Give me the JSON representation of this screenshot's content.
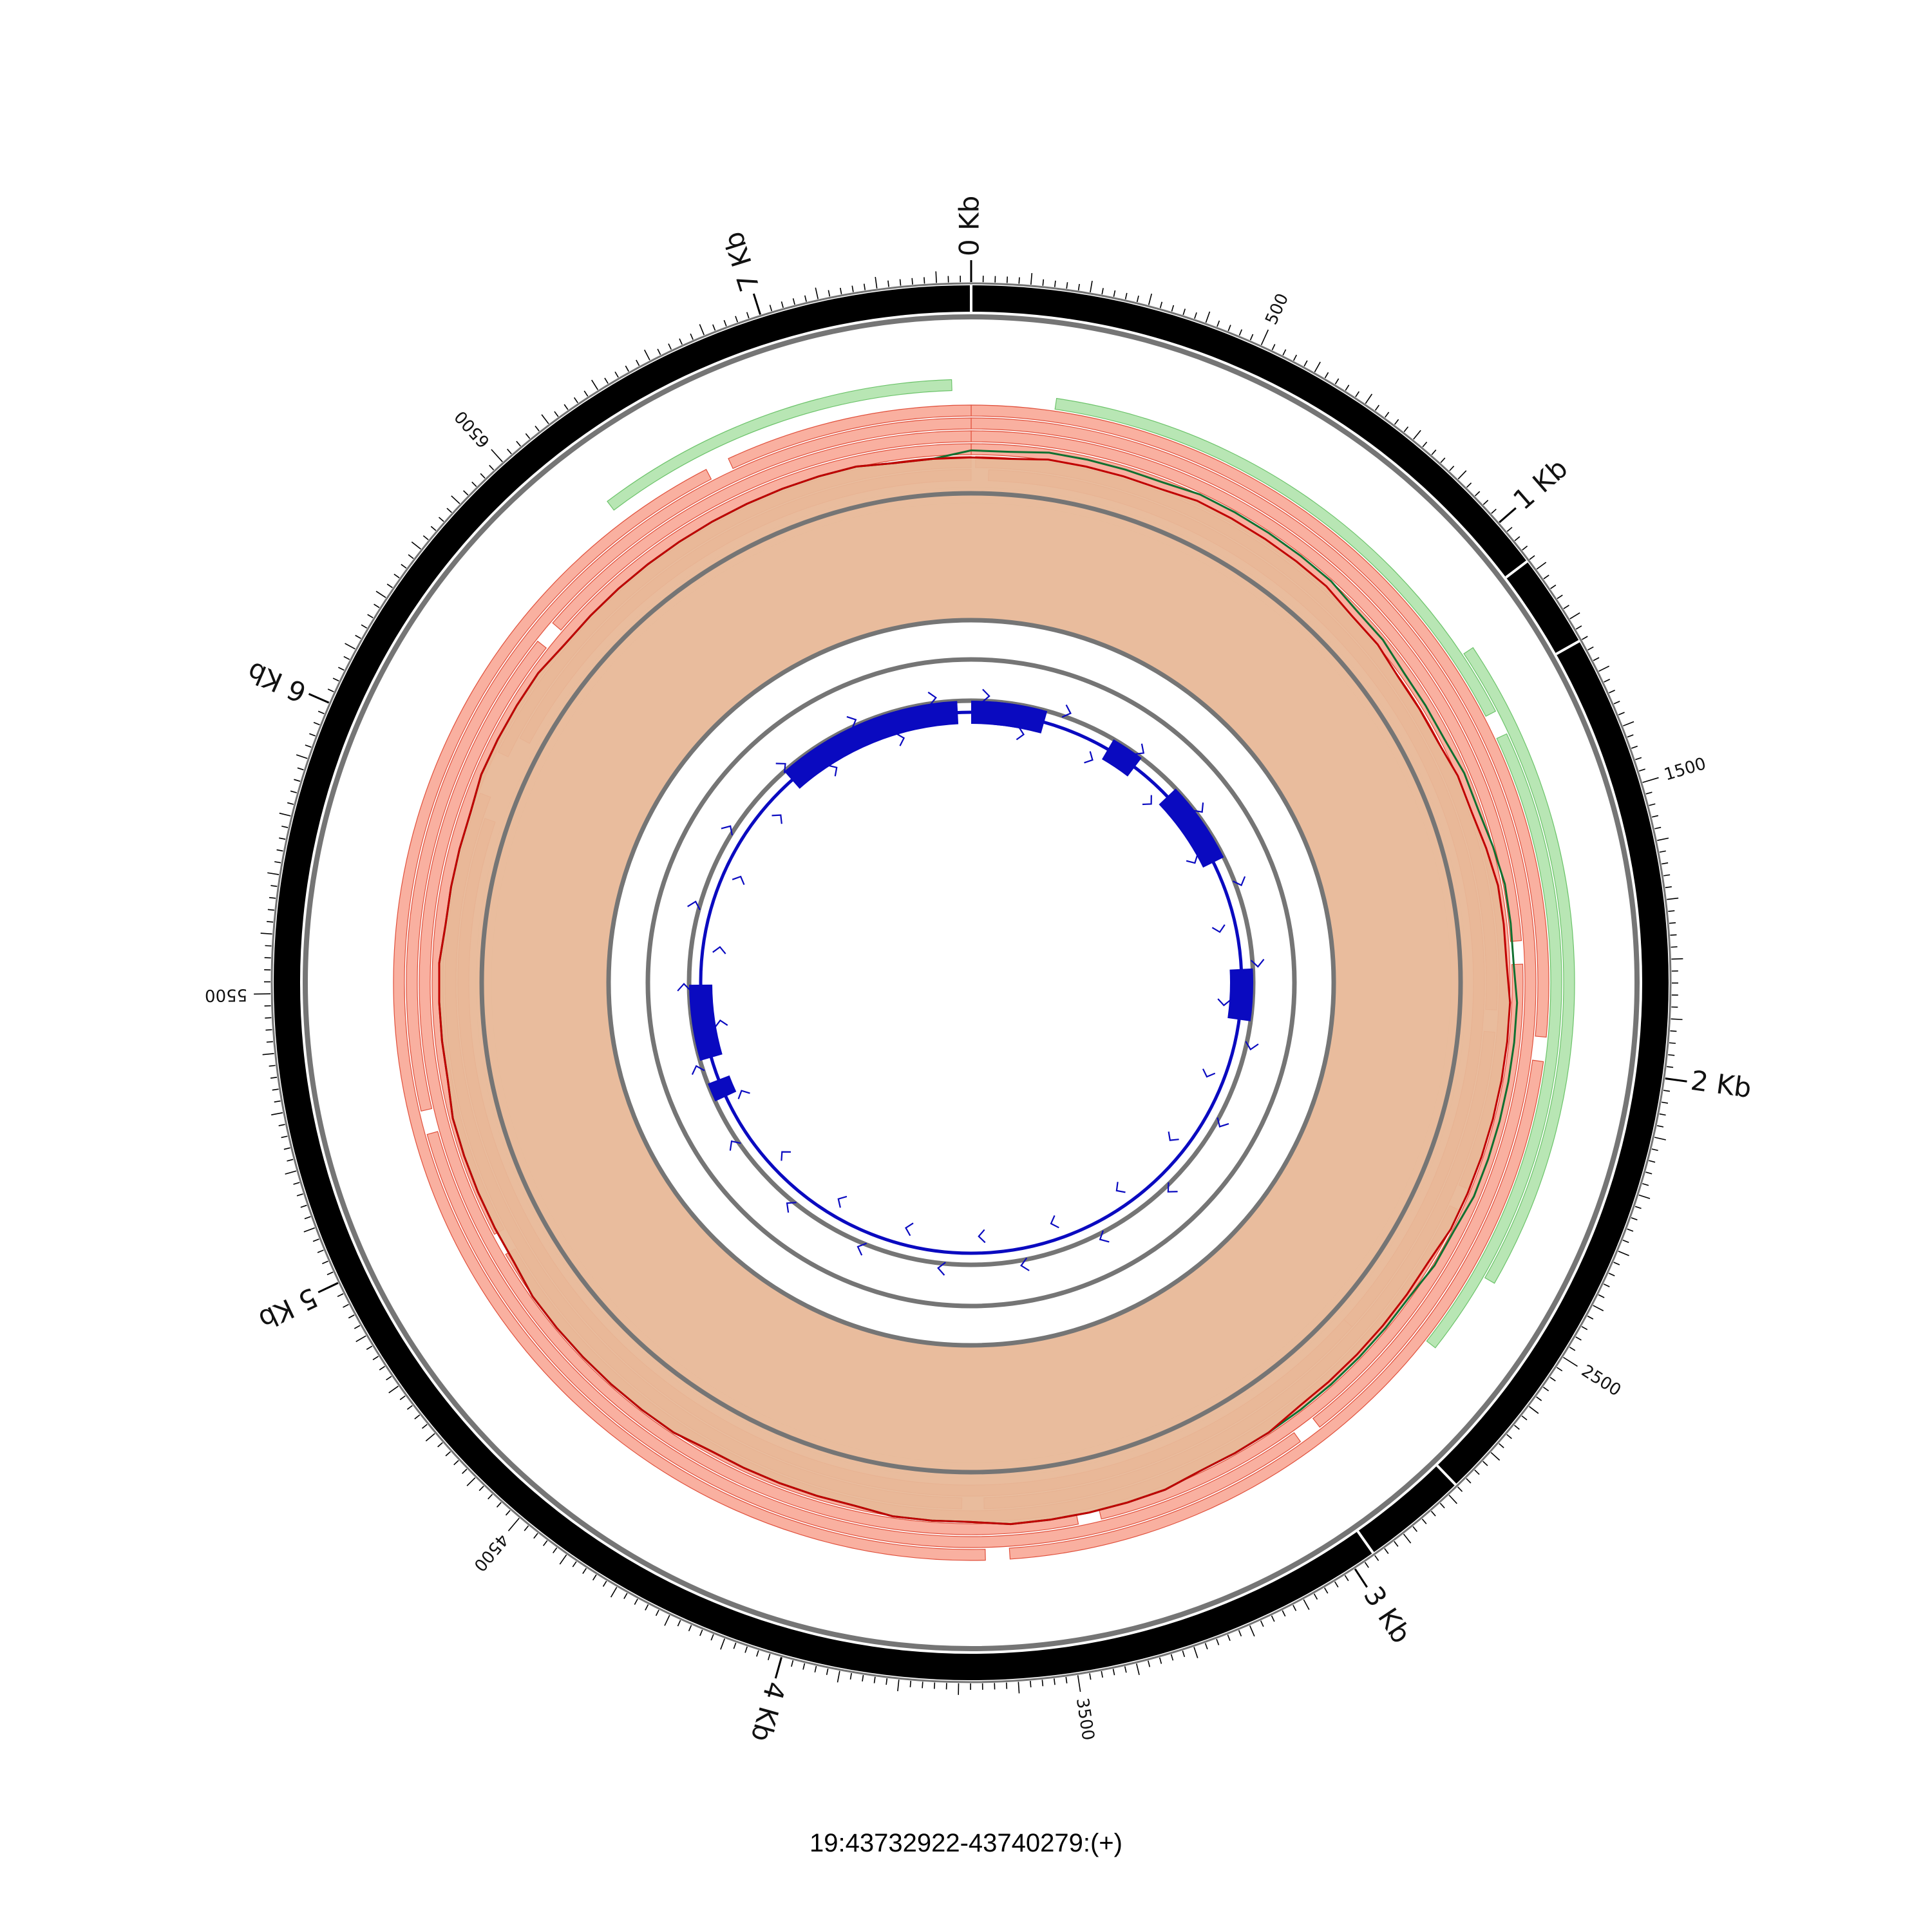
{
  "region_label": "19:43732922-43740279:(+)",
  "genome_length": 7358,
  "major_ticks": [
    {
      "pos": 0,
      "label": "0 Kb"
    },
    {
      "pos": 1000,
      "label": "1 Kb"
    },
    {
      "pos": 2000,
      "label": "2 Kb"
    },
    {
      "pos": 3000,
      "label": "3 Kb"
    },
    {
      "pos": 4000,
      "label": "4 Kb"
    },
    {
      "pos": 5000,
      "label": "5 Kb"
    },
    {
      "pos": 6000,
      "label": "6 Kb"
    },
    {
      "pos": 7000,
      "label": "7 Kb"
    }
  ],
  "minor_labels": [
    {
      "pos": 500,
      "label": "500"
    },
    {
      "pos": 1500,
      "label": "1500"
    },
    {
      "pos": 2500,
      "label": "2500"
    },
    {
      "pos": 3500,
      "label": "3500"
    },
    {
      "pos": 4500,
      "label": "4500"
    },
    {
      "pos": 5500,
      "label": "5500"
    },
    {
      "pos": 6500,
      "label": "6500"
    }
  ],
  "colors": {
    "ideogram": "#000000",
    "ring_grey": "#757575",
    "forward_read": "#f9b0a0",
    "forward_read_edge": "#e0503c",
    "reverse_read": "#b8e6b4",
    "reverse_read_edge": "#6cc36a",
    "coverage_fill": "#e8b898",
    "coverage_line_a": "#c00000",
    "coverage_line_b": "#107030",
    "gene": "#0a0ac0"
  },
  "reads": [
    {
      "strand": "+",
      "start": 40,
      "end": 2700,
      "lane": 0
    },
    {
      "strand": "+",
      "start": 2700,
      "end": 5900,
      "lane": 0
    },
    {
      "strand": "+",
      "start": 6100,
      "end": 7358,
      "lane": 0
    },
    {
      "strand": "+",
      "start": 10,
      "end": 1900,
      "lane": 1
    },
    {
      "strand": "+",
      "start": 1950,
      "end": 3650,
      "lane": 1
    },
    {
      "strand": "+",
      "start": 3700,
      "end": 5950,
      "lane": 1
    },
    {
      "strand": "+",
      "start": 6050,
      "end": 7358,
      "lane": 1
    },
    {
      "strand": "+",
      "start": 0,
      "end": 2300,
      "lane": 2
    },
    {
      "strand": "+",
      "start": 2350,
      "end": 4900,
      "lane": 2
    },
    {
      "strand": "+",
      "start": 4950,
      "end": 7358,
      "lane": 2
    },
    {
      "strand": "+",
      "start": 0,
      "end": 1750,
      "lane": 3
    },
    {
      "strand": "+",
      "start": 1800,
      "end": 3400,
      "lane": 3
    },
    {
      "strand": "+",
      "start": 3450,
      "end": 6300,
      "lane": 3
    },
    {
      "strand": "+",
      "start": 6350,
      "end": 7358,
      "lane": 3
    },
    {
      "strand": "+",
      "start": 0,
      "end": 2900,
      "lane": 4
    },
    {
      "strand": "+",
      "start": 2950,
      "end": 5200,
      "lane": 4
    },
    {
      "strand": "+",
      "start": 5250,
      "end": 7358,
      "lane": 4
    },
    {
      "strand": "+",
      "start": 0,
      "end": 1950,
      "lane": 5
    },
    {
      "strand": "+",
      "start": 2000,
      "end": 3600,
      "lane": 5
    },
    {
      "strand": "+",
      "start": 3650,
      "end": 6800,
      "lane": 5
    },
    {
      "strand": "+",
      "start": 6850,
      "end": 7358,
      "lane": 5
    },
    {
      "strand": "-",
      "start": 170,
      "end": 1280,
      "lane": 6
    },
    {
      "strand": "-",
      "start": 1330,
      "end": 2620,
      "lane": 6
    },
    {
      "strand": "-",
      "start": 1150,
      "end": 2450,
      "lane": 7
    },
    {
      "strand": "-",
      "start": 6600,
      "end": 7320,
      "lane": 7
    }
  ],
  "coverage": {
    "max": 100,
    "inner_series": [
      66,
      66,
      67,
      67,
      67,
      67,
      68,
      68,
      68,
      68,
      68,
      67,
      67,
      66,
      66,
      66,
      67,
      67,
      68,
      69,
      69,
      69,
      70,
      70,
      70,
      70,
      70,
      70,
      70,
      69,
      69,
      69,
      69,
      69,
      69,
      70,
      70,
      70,
      71,
      71,
      71,
      71,
      71,
      70,
      70,
      70,
      69,
      69,
      69,
      69,
      69,
      70,
      70,
      70,
      70,
      70,
      70,
      69,
      69,
      69,
      69,
      69,
      68,
      68,
      68,
      68,
      67,
      67,
      67,
      67,
      68,
      68,
      68,
      68,
      67,
      67,
      67,
      67,
      67,
      67,
      67,
      67,
      67,
      67,
      66,
      66
    ],
    "outer_series": [
      68,
      68,
      69,
      69,
      69,
      69,
      70,
      70,
      70,
      70,
      70,
      69,
      69,
      68,
      68,
      68,
      69,
      69,
      70,
      71,
      71,
      71,
      72,
      72,
      72,
      72,
      72,
      72,
      71,
      71,
      70,
      70,
      70,
      70,
      70,
      70,
      70,
      70,
      71,
      71,
      71,
      71,
      71,
      70,
      70,
      70,
      69,
      69,
      69,
      69,
      69,
      70,
      70,
      70,
      70,
      70,
      70,
      69,
      69,
      69,
      69,
      69,
      68,
      68,
      68,
      68,
      67,
      67,
      67,
      67,
      68,
      68,
      68,
      68,
      67,
      67,
      67,
      67,
      67,
      67,
      67,
      67,
      67,
      67,
      66,
      66
    ]
  },
  "exons": [
    {
      "start": 0,
      "end": 300
    },
    {
      "start": 100,
      "end": 320
    },
    {
      "start": 620,
      "end": 760
    },
    {
      "start": 950,
      "end": 1300
    },
    {
      "start": 1780,
      "end": 2000
    },
    {
      "start": 5190,
      "end": 5510
    },
    {
      "start": 5010,
      "end": 5090
    },
    {
      "start": 6510,
      "end": 7300
    }
  ],
  "gene_strand": "+"
}
